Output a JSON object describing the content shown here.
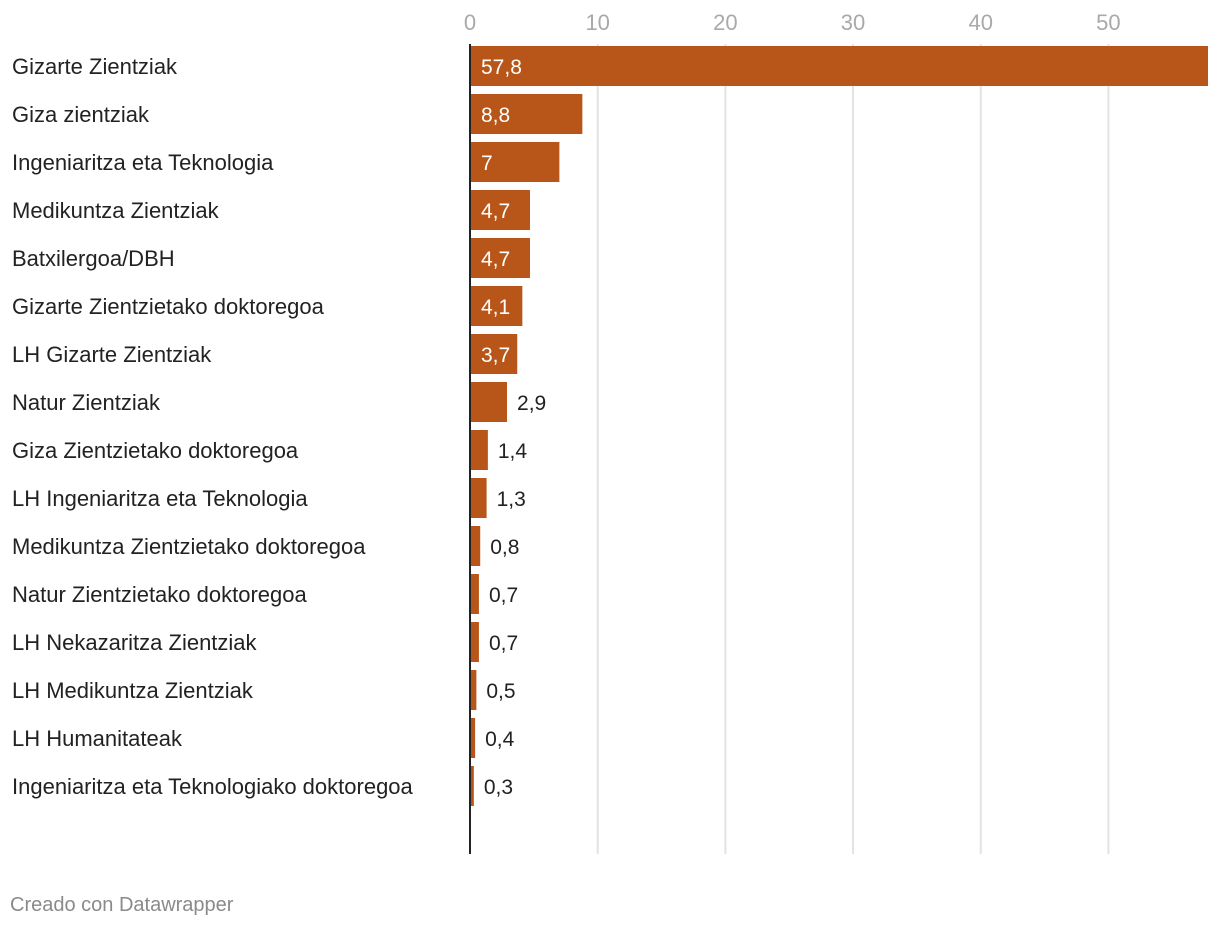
{
  "chart_data": {
    "type": "bar",
    "orientation": "horizontal",
    "categories": [
      "Gizarte Zientziak",
      "Giza zientziak",
      "Ingeniaritza eta Teknologia",
      "Medikuntza Zientziak",
      "Batxilergoa/DBH",
      "Gizarte Zientzietako doktoregoa",
      "LH Gizarte Zientziak",
      "Natur Zientziak",
      "Giza Zientzietako doktoregoa",
      "LH Ingeniaritza eta Teknologia",
      "Medikuntza Zientzietako doktoregoa",
      "Natur Zientzietako doktoregoa",
      "LH Nekazaritza Zientziak",
      "LH Medikuntza Zientziak",
      "LH Humanitateak",
      "Ingeniaritza eta Teknologiako doktoregoa"
    ],
    "values": [
      57.8,
      8.8,
      7,
      4.7,
      4.7,
      4.1,
      3.7,
      2.9,
      1.4,
      1.3,
      0.8,
      0.7,
      0.7,
      0.5,
      0.4,
      0.3
    ],
    "value_labels": [
      "57,8",
      "8,8",
      "7",
      "4,7",
      "4,7",
      "4,1",
      "3,7",
      "2,9",
      "1,4",
      "1,3",
      "0,8",
      "0,7",
      "0,7",
      "0,5",
      "0,4",
      "0,3"
    ],
    "x_ticks": [
      0,
      10,
      20,
      30,
      40,
      50
    ],
    "xlim": [
      0,
      57.8
    ],
    "grid": true,
    "bar_color": "#b8561a",
    "title": "",
    "xlabel": "",
    "ylabel": ""
  },
  "footer": {
    "credit": "Creado con Datawrapper"
  }
}
